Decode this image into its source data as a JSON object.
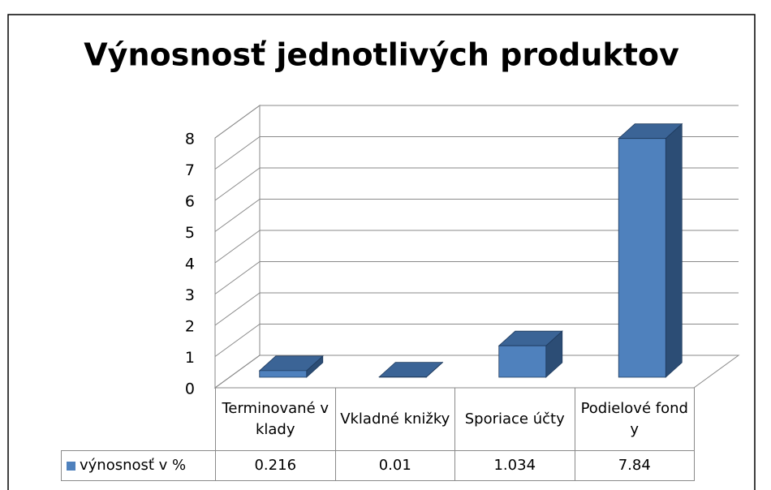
{
  "chart_data": {
    "type": "bar",
    "title": "Výnosnosť jednotlivých produktov",
    "categories": [
      "Terminované vklady",
      "Vkladné knižky",
      "Sporiace účty",
      "Podielové fondy"
    ],
    "series": [
      {
        "name": "výnosnosť v %",
        "color": "#4f81bd",
        "values": [
          0.216,
          0.01,
          1.034,
          7.84
        ]
      }
    ],
    "ylim": [
      0,
      8
    ],
    "yticks": [
      0,
      1,
      2,
      3,
      4,
      5,
      6,
      7,
      8
    ],
    "grid": true,
    "legend": "bottom-left"
  }
}
